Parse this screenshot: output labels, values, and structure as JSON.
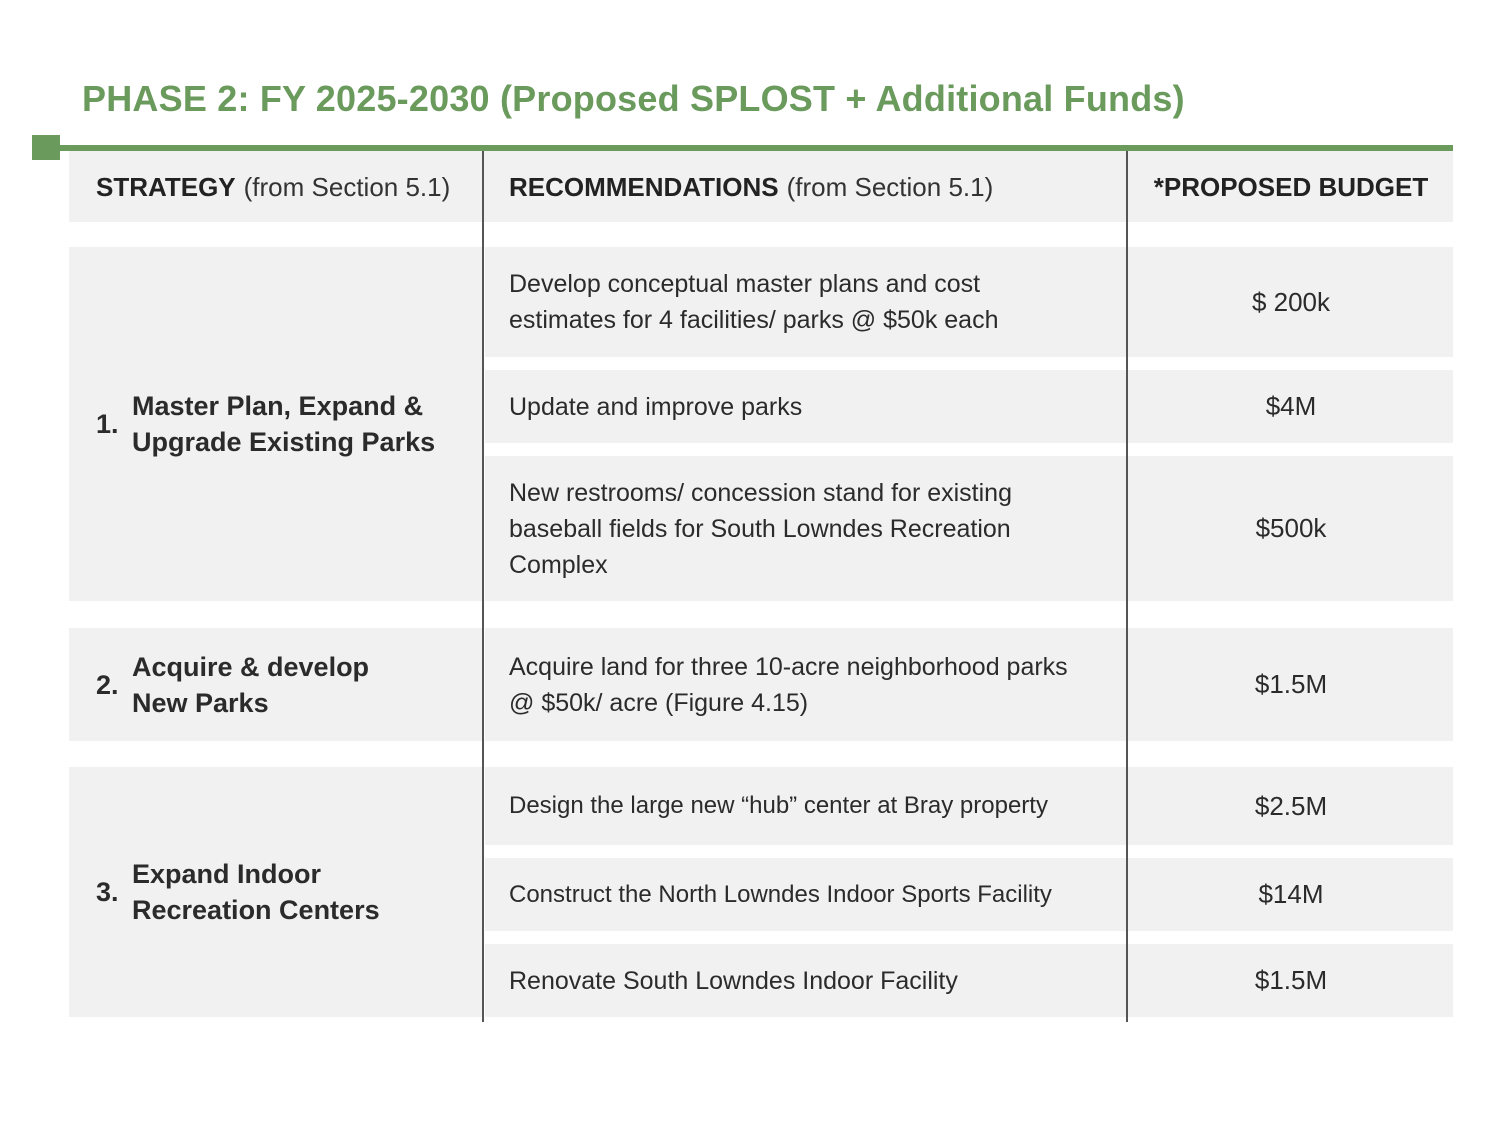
{
  "title": "PHASE 2: FY 2025-2030 (Proposed SPLOST + Additional Funds)",
  "colors": {
    "accent": "#6a9a5c",
    "row_bg": "#f1f1f1",
    "divider": "#555555"
  },
  "header": {
    "strategy_bold": "STRATEGY",
    "strategy_light": "(from Section 5.1)",
    "recommendations_bold": "RECOMMENDATIONS",
    "recommendations_light": "(from Section 5.1)",
    "budget": "*PROPOSED BUDGET"
  },
  "strategies": [
    {
      "number": "1.",
      "label": "Master Plan, Expand & Upgrade Existing Parks"
    },
    {
      "number": "2.",
      "label": "Acquire & develop New Parks"
    },
    {
      "number": "3.",
      "label": "Expand Indoor Recreation Centers"
    }
  ],
  "rows": [
    {
      "recommendation": "Develop conceptual master plans and cost estimates for 4 facilities/ parks @ $50k each",
      "budget": "$ 200k"
    },
    {
      "recommendation": "Update and improve parks",
      "budget": "$4M"
    },
    {
      "recommendation": "New restrooms/ concession stand for existing baseball fields for South Lowndes Recreation Complex",
      "budget": "$500k"
    },
    {
      "recommendation": "Acquire land for three 10-acre neighborhood parks @ $50k/ acre (Figure 4.15)",
      "budget": "$1.5M"
    },
    {
      "recommendation": "Design the large new “hub” center at Bray property",
      "budget": "$2.5M"
    },
    {
      "recommendation": "Construct the North Lowndes Indoor Sports Facility",
      "budget": "$14M"
    },
    {
      "recommendation": "Renovate South Lowndes Indoor Facility",
      "budget": "$1.5M"
    }
  ]
}
